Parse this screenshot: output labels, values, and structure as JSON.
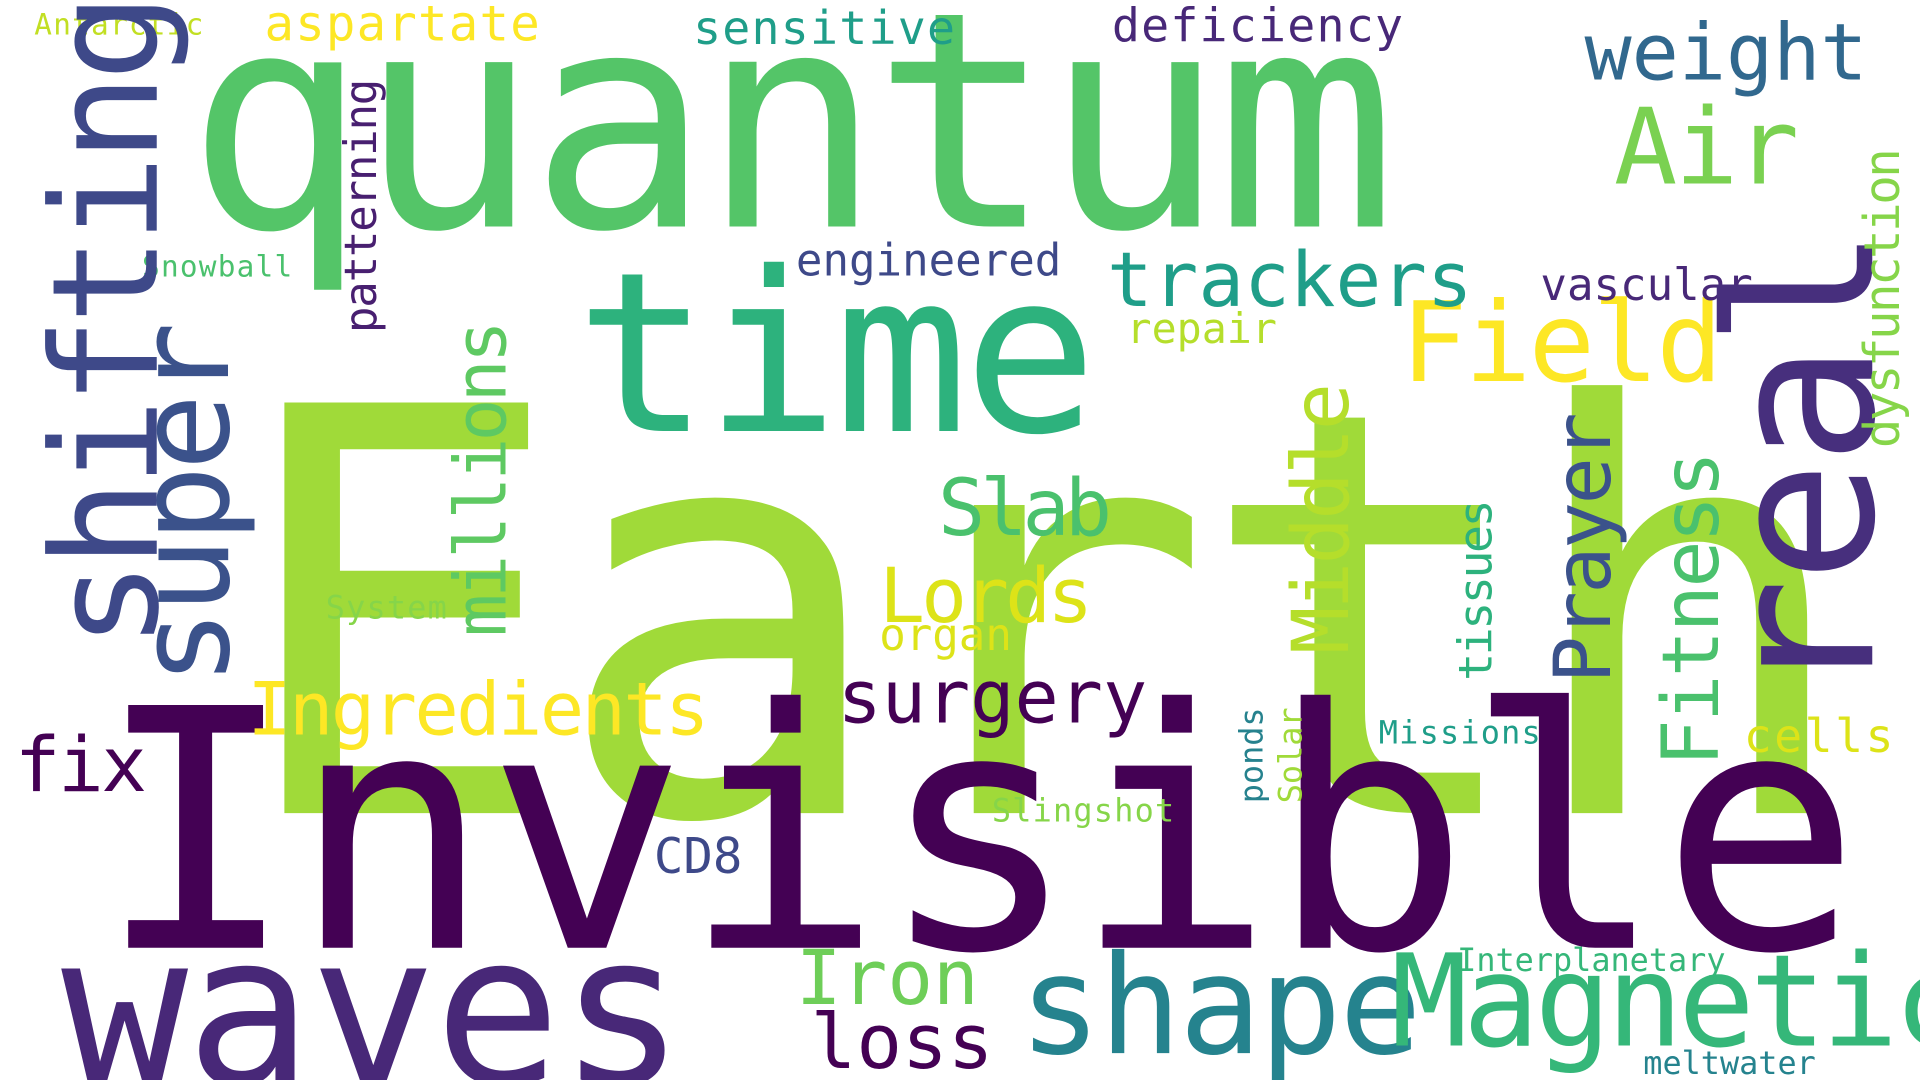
{
  "cloud": {
    "words": [
      {
        "text": "Earth",
        "color": "#a0da39"
      },
      {
        "text": "Invisible",
        "color": "#440154"
      },
      {
        "text": "quantum",
        "color": "#54c568"
      },
      {
        "text": "time",
        "color": "#2db27d"
      },
      {
        "text": "real",
        "color": "#472f7d"
      },
      {
        "text": "waves",
        "color": "#482878"
      },
      {
        "text": "shifting",
        "color": "#3e4989"
      },
      {
        "text": "super",
        "color": "#3b528b"
      },
      {
        "text": "shape",
        "color": "#25838e"
      },
      {
        "text": "Magnetic",
        "color": "#35b779"
      },
      {
        "text": "Field",
        "color": "#fde725"
      },
      {
        "text": "Air",
        "color": "#7ad151"
      },
      {
        "text": "weight",
        "color": "#31688e"
      },
      {
        "text": "trackers",
        "color": "#1f9e89"
      },
      {
        "text": "Ingredients",
        "color": "#fde725"
      },
      {
        "text": "surgery",
        "color": "#440154"
      },
      {
        "text": "Slab",
        "color": "#4ac16d"
      },
      {
        "text": "Lords",
        "color": "#dde318"
      },
      {
        "text": "Middle",
        "color": "#b5de2b"
      },
      {
        "text": "Prayer",
        "color": "#3b528b"
      },
      {
        "text": "Fitness",
        "color": "#4ac16d"
      },
      {
        "text": "millions",
        "color": "#5ec962"
      },
      {
        "text": "Iron",
        "color": "#6ece58"
      },
      {
        "text": "loss",
        "color": "#440154"
      },
      {
        "text": "fix",
        "color": "#440154"
      },
      {
        "text": "CD8",
        "color": "#3e4989"
      },
      {
        "text": "aspartate",
        "color": "#fde725"
      },
      {
        "text": "sensitive",
        "color": "#1f9e89"
      },
      {
        "text": "deficiency",
        "color": "#482878"
      },
      {
        "text": "engineered",
        "color": "#3e4989"
      },
      {
        "text": "vascular",
        "color": "#482878"
      },
      {
        "text": "repair",
        "color": "#b5de2b"
      },
      {
        "text": "patterning",
        "color": "#481f70"
      },
      {
        "text": "dysfunction",
        "color": "#86d549"
      },
      {
        "text": "tissues",
        "color": "#2db27d"
      },
      {
        "text": "organ",
        "color": "#dde318"
      },
      {
        "text": "cells",
        "color": "#dde318"
      },
      {
        "text": "Snowball",
        "color": "#4ac16d"
      },
      {
        "text": "Antarctic",
        "color": "#c2df23"
      },
      {
        "text": "System",
        "color": "#86d549"
      },
      {
        "text": "ponds",
        "color": "#26828e"
      },
      {
        "text": "Solar",
        "color": "#a0da39"
      },
      {
        "text": "Missions",
        "color": "#1f9e89"
      },
      {
        "text": "Slingshot",
        "color": "#86d549"
      },
      {
        "text": "Interplanetary",
        "color": "#35b779"
      },
      {
        "text": "meltwater",
        "color": "#25838e"
      }
    ]
  }
}
